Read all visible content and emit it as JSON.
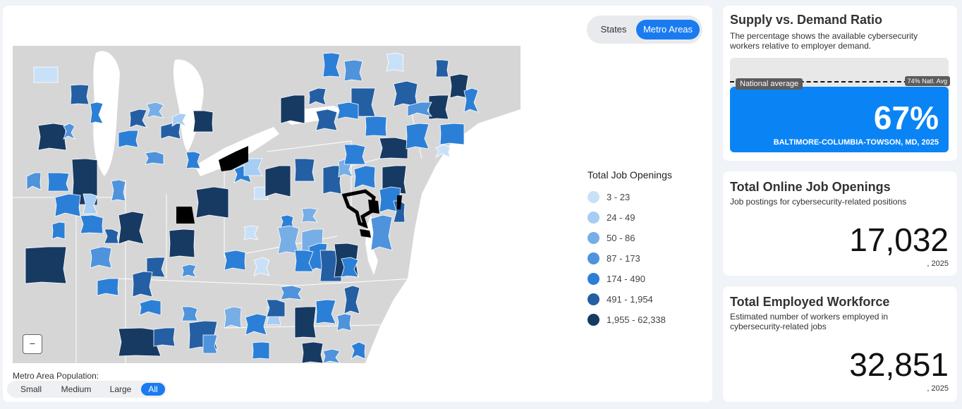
{
  "toggle": {
    "states": "States",
    "metro": "Metro Areas"
  },
  "legend": {
    "title": "Total Job Openings",
    "items": [
      {
        "label": "3 - 23",
        "color": "#c9e1f8"
      },
      {
        "label": "24 - 49",
        "color": "#a6cdf3"
      },
      {
        "label": "50 - 86",
        "color": "#78aee6"
      },
      {
        "label": "87 - 173",
        "color": "#4e93dc"
      },
      {
        "label": "174 - 490",
        "color": "#2c7fd6"
      },
      {
        "label": "491 - 1,954",
        "color": "#245fa4"
      },
      {
        "label": "1,955 - 62,338",
        "color": "#173a63"
      }
    ]
  },
  "zoom": {
    "out": "−"
  },
  "population": {
    "label": "Metro Area Population:",
    "small": "Small",
    "medium": "Medium",
    "large": "Large",
    "all": "All"
  },
  "ratio": {
    "title": "Supply vs. Demand Ratio",
    "desc": "The percentage shows the available cybersecurity workers relative to employer demand.",
    "national_label": "National average",
    "national_tag": "74% Natl. Avg",
    "value": "67%",
    "metro": "BALTIMORE-COLUMBIA-TOWSON, MD, 2025",
    "value_fraction": 0.67,
    "national_fraction": 0.74
  },
  "jobs": {
    "title": "Total Online Job Openings",
    "desc": "Job postings for cybersecurity-related positions",
    "value": "17,032",
    "year": ", 2025"
  },
  "workforce": {
    "title": "Total Employed Workforce",
    "desc": "Estimated number of workers employed in cybersecurity-related jobs",
    "value": "32,851",
    "year": ", 2025"
  }
}
